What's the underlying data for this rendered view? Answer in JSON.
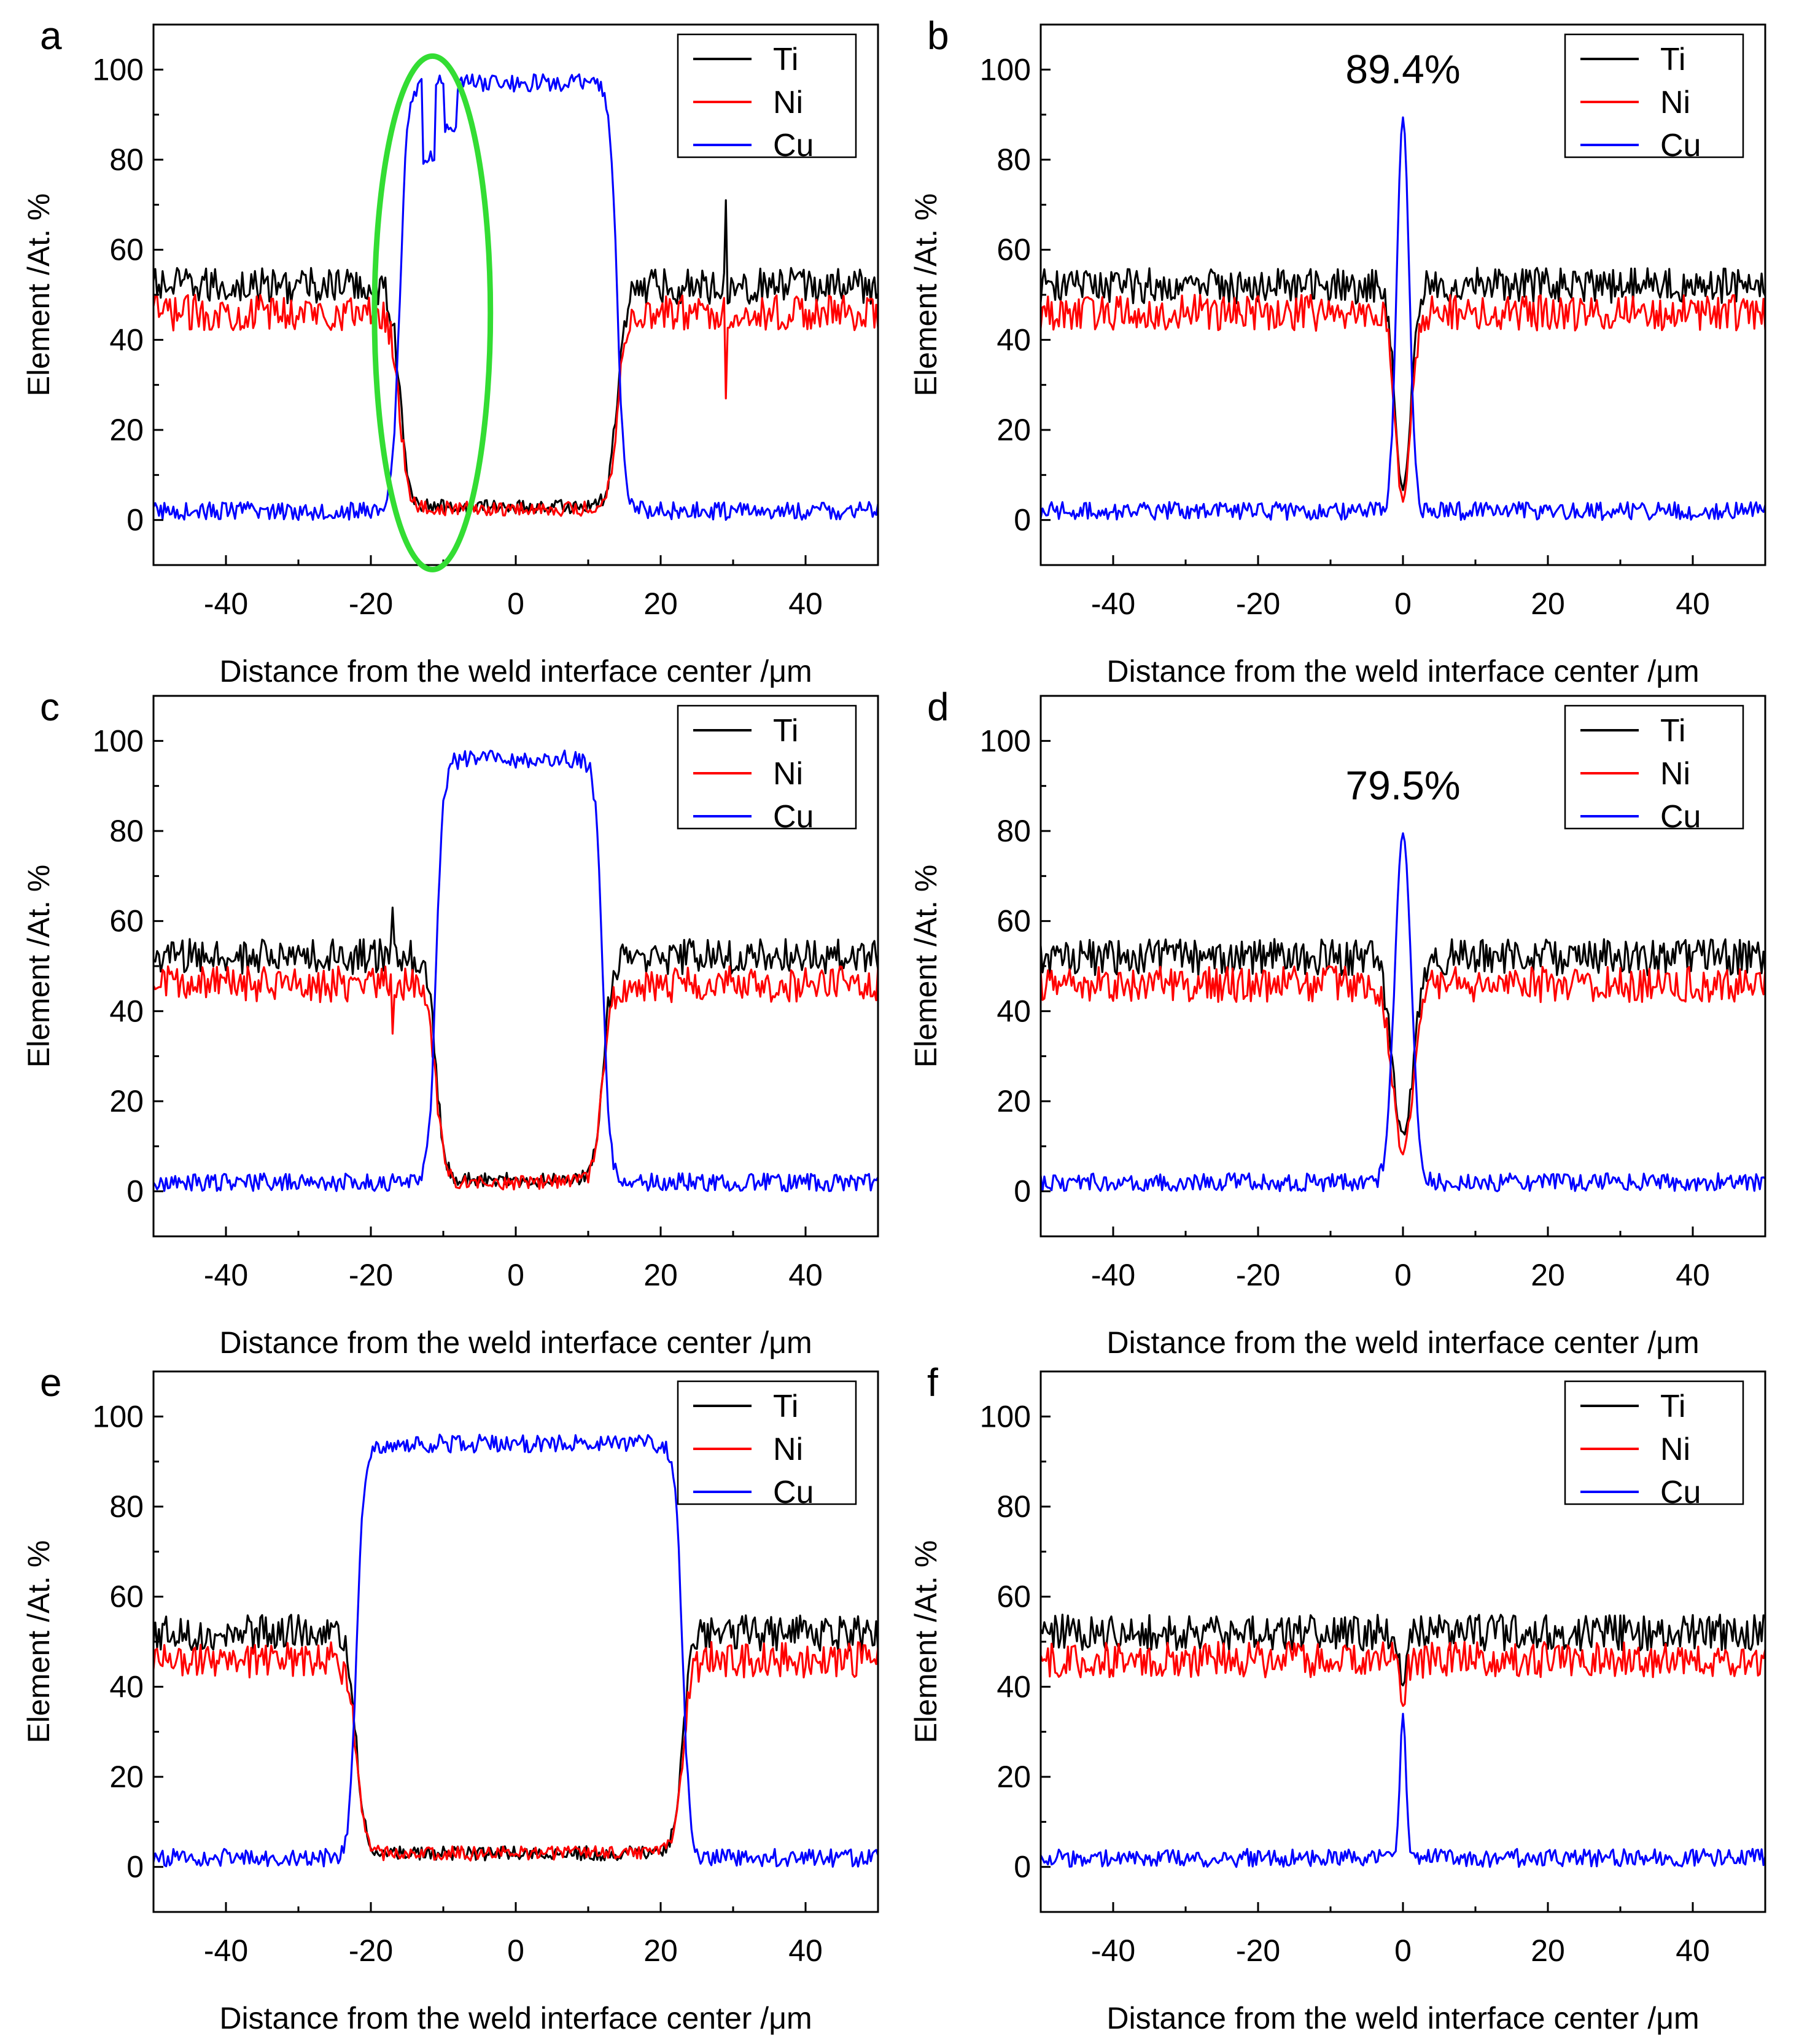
{
  "chart_data": [
    {
      "type": "line",
      "panel": "a",
      "xlabel": "Distance from the weld interface center /μm",
      "ylabel": "Element /At. %",
      "xlim": [
        -50,
        50
      ],
      "ylim": [
        -10,
        110
      ],
      "xticks": [
        -40,
        -20,
        0,
        20,
        40
      ],
      "yticks": [
        0,
        20,
        40,
        60,
        80,
        100
      ],
      "legend": {
        "position": "top-right",
        "entries": [
          "Ti",
          "Ni",
          "Cu"
        ]
      },
      "series": [
        {
          "name": "Ti",
          "color": "#000000",
          "region": "wide",
          "left_edge": -16,
          "right_edge": 14,
          "base": 52,
          "inner": 3,
          "noise": 4,
          "spikes": [
            [
              29,
              71
            ]
          ]
        },
        {
          "name": "Ni",
          "color": "#ff0000",
          "region": "wide",
          "left_edge": -16,
          "right_edge": 14,
          "base": 46,
          "inner": 2.5,
          "noise": 4,
          "spikes": [
            [
              29,
              27
            ]
          ]
        },
        {
          "name": "Cu",
          "color": "#0000ff",
          "region": "plateau",
          "left_edge": -16,
          "right_edge": 14,
          "base": 2,
          "peak": 97,
          "noise": 2,
          "dips": [
            [
              -12,
              80
            ],
            [
              -9,
              88
            ]
          ]
        }
      ],
      "annotations": [
        {
          "type": "ellipse",
          "color": "#33dd33",
          "center": [
            -11.5,
            46
          ],
          "rx": 8,
          "ry": 57
        }
      ]
    },
    {
      "type": "line",
      "panel": "b",
      "xlabel": "Distance from the weld interface center /μm",
      "ylabel": "Element /At. %",
      "xlim": [
        -50,
        50
      ],
      "ylim": [
        -10,
        110
      ],
      "xticks": [
        -40,
        -20,
        0,
        20,
        40
      ],
      "yticks": [
        0,
        20,
        40,
        60,
        80,
        100
      ],
      "legend": {
        "position": "top-right",
        "entries": [
          "Ti",
          "Ni",
          "Cu"
        ]
      },
      "series": [
        {
          "name": "Ti",
          "color": "#000000",
          "region": "narrow",
          "center": 0,
          "half_width": 1.5,
          "base": 52,
          "inner": 7,
          "noise": 4
        },
        {
          "name": "Ni",
          "color": "#ff0000",
          "region": "narrow",
          "center": 0,
          "half_width": 1.5,
          "base": 46,
          "inner": 4,
          "noise": 4
        },
        {
          "name": "Cu",
          "color": "#0000ff",
          "region": "peak",
          "center": 0,
          "half_width": 1.2,
          "base": 2,
          "peak": 89.4,
          "noise": 2
        }
      ],
      "annotations": [
        {
          "type": "text",
          "text": "89.4%",
          "at": [
            0,
            97
          ]
        }
      ]
    },
    {
      "type": "line",
      "panel": "c",
      "xlabel": "Distance from the weld interface center /μm",
      "ylabel": "Element /At. %",
      "xlim": [
        -50,
        50
      ],
      "ylim": [
        -10,
        110
      ],
      "xticks": [
        -40,
        -20,
        0,
        20,
        40
      ],
      "yticks": [
        0,
        20,
        40,
        60,
        80,
        100
      ],
      "legend": {
        "position": "top-right",
        "entries": [
          "Ti",
          "Ni",
          "Cu"
        ]
      },
      "series": [
        {
          "name": "Ti",
          "color": "#000000",
          "region": "wide",
          "left_edge": -11,
          "right_edge": 12,
          "base": 52,
          "inner": 2.5,
          "noise": 4,
          "spikes": [
            [
              -17,
              63
            ]
          ]
        },
        {
          "name": "Ni",
          "color": "#ff0000",
          "region": "wide",
          "left_edge": -11,
          "right_edge": 12,
          "base": 46,
          "inner": 2,
          "noise": 4,
          "spikes": [
            [
              -17,
              35
            ]
          ]
        },
        {
          "name": "Cu",
          "color": "#0000ff",
          "region": "plateau",
          "left_edge": -11,
          "right_edge": 12,
          "base": 2,
          "peak": 96,
          "noise": 2,
          "dips": []
        }
      ]
    },
    {
      "type": "line",
      "panel": "d",
      "xlabel": "Distance from the weld interface center /μm",
      "ylabel": "Element /At. %",
      "xlim": [
        -50,
        50
      ],
      "ylim": [
        -10,
        110
      ],
      "xticks": [
        -40,
        -20,
        0,
        20,
        40
      ],
      "yticks": [
        0,
        20,
        40,
        60,
        80,
        100
      ],
      "legend": {
        "position": "top-right",
        "entries": [
          "Ti",
          "Ni",
          "Cu"
        ]
      },
      "series": [
        {
          "name": "Ti",
          "color": "#000000",
          "region": "narrow",
          "center": 0,
          "half_width": 2,
          "base": 52,
          "inner": 12,
          "noise": 4
        },
        {
          "name": "Ni",
          "color": "#ff0000",
          "region": "narrow",
          "center": 0,
          "half_width": 2,
          "base": 46,
          "inner": 9,
          "noise": 4
        },
        {
          "name": "Cu",
          "color": "#0000ff",
          "region": "peak",
          "center": 0,
          "half_width": 1.6,
          "base": 2,
          "peak": 79.5,
          "noise": 2
        }
      ],
      "annotations": [
        {
          "type": "text",
          "text": "79.5%",
          "at": [
            0,
            87
          ]
        }
      ]
    },
    {
      "type": "line",
      "panel": "e",
      "xlabel": "Distance from the weld interface center /μm",
      "ylabel": "Element /At. %",
      "xlim": [
        -50,
        50
      ],
      "ylim": [
        -10,
        110
      ],
      "xticks": [
        -40,
        -20,
        0,
        20,
        40
      ],
      "yticks": [
        0,
        20,
        40,
        60,
        80,
        100
      ],
      "legend": {
        "position": "top-right",
        "entries": [
          "Ti",
          "Ni",
          "Cu"
        ]
      },
      "series": [
        {
          "name": "Ti",
          "color": "#000000",
          "region": "wide",
          "left_edge": -22,
          "right_edge": 23,
          "base": 52,
          "inner": 3,
          "noise": 4,
          "spikes": []
        },
        {
          "name": "Ni",
          "color": "#ff0000",
          "region": "wide",
          "left_edge": -22,
          "right_edge": 23,
          "base": 46,
          "inner": 3,
          "noise": 4,
          "spikes": []
        },
        {
          "name": "Cu",
          "color": "#0000ff",
          "region": "plateau",
          "left_edge": -22,
          "right_edge": 23,
          "base": 2,
          "peak": 94,
          "noise": 2,
          "dips": []
        }
      ]
    },
    {
      "type": "line",
      "panel": "f",
      "xlabel": "Distance from the weld interface center /μm",
      "ylabel": "Element /At. %",
      "xlim": [
        -50,
        50
      ],
      "ylim": [
        -10,
        110
      ],
      "xticks": [
        -40,
        -20,
        0,
        20,
        40
      ],
      "yticks": [
        0,
        20,
        40,
        60,
        80,
        100
      ],
      "legend": {
        "position": "top-right",
        "entries": [
          "Ti",
          "Ni",
          "Cu"
        ]
      },
      "series": [
        {
          "name": "Ti",
          "color": "#000000",
          "region": "narrow",
          "center": 0,
          "half_width": 0.6,
          "base": 52,
          "inner": 40,
          "noise": 4
        },
        {
          "name": "Ni",
          "color": "#ff0000",
          "region": "narrow",
          "center": 0,
          "half_width": 0.6,
          "base": 46,
          "inner": 35,
          "noise": 4
        },
        {
          "name": "Cu",
          "color": "#0000ff",
          "region": "peak",
          "center": 0,
          "half_width": 0.6,
          "base": 2,
          "peak": 34,
          "noise": 2
        }
      ]
    }
  ]
}
